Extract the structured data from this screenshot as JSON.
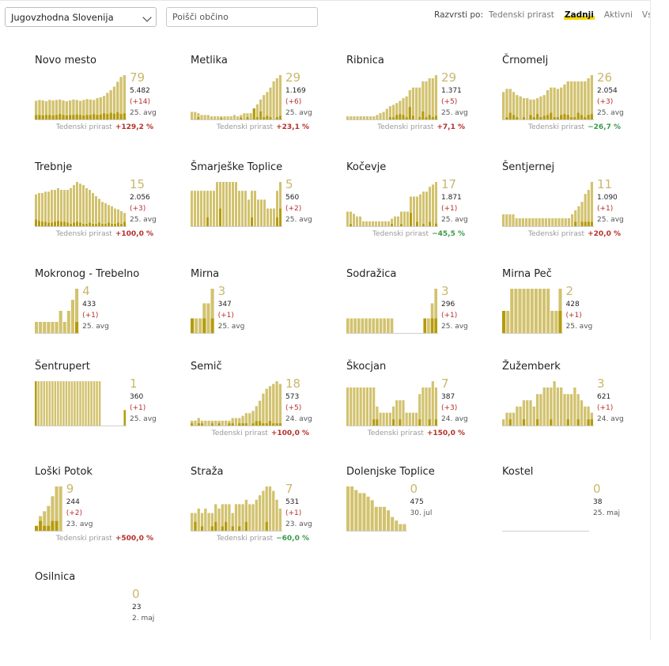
{
  "controls": {
    "region_value": "Jugovzhodna Slovenija",
    "search_placeholder": "Poišči občino",
    "sort_label": "Razvrsti po:",
    "sort_options": [
      "Tedenski prirast",
      "Zadnji",
      "Aktivni",
      "Vsi"
    ],
    "sort_active": "Zadnji"
  },
  "growth_label": "Tedenski prirast",
  "colors": {
    "active": "#d2c26e",
    "new": "#b59b0b",
    "muted_number": "#c9b86a",
    "up": "#b4302a",
    "down": "#3a9a4a"
  },
  "municipalities": [
    {
      "name": "Novo mesto",
      "active": "79",
      "total": "5.482",
      "delta": "(+14)",
      "date": "25. avg",
      "growth": "+129,2 %",
      "trend": "up",
      "bars": [
        0.42,
        0.44,
        0.43,
        0.41,
        0.44,
        0.43,
        0.44,
        0.45,
        0.43,
        0.41,
        0.43,
        0.45,
        0.44,
        0.42,
        0.44,
        0.46,
        0.45,
        0.44,
        0.48,
        0.5,
        0.53,
        0.6,
        0.66,
        0.74,
        0.85,
        0.96,
        1.0
      ],
      "news": [
        0.1,
        0.1,
        0.09,
        0.1,
        0.1,
        0.09,
        0.1,
        0.12,
        0.1,
        0.09,
        0.1,
        0.1,
        0.11,
        0.1,
        0.09,
        0.1,
        0.1,
        0.12,
        0.1,
        0.11,
        0.14,
        0.12,
        0.15,
        0.13,
        0.16,
        0.12,
        0.14
      ]
    },
    {
      "name": "Metlika",
      "active": "29",
      "total": "1.169",
      "delta": "(+6)",
      "date": "25. avg",
      "growth": "+23,1 %",
      "trend": "up",
      "bars": [
        0.17,
        0.17,
        0.14,
        0.1,
        0.1,
        0.1,
        0.07,
        0.07,
        0.07,
        0.07,
        0.07,
        0.07,
        0.07,
        0.1,
        0.07,
        0.1,
        0.14,
        0.14,
        0.14,
        0.24,
        0.34,
        0.45,
        0.55,
        0.62,
        0.72,
        0.86,
        0.93,
        1.0
      ],
      "news": [
        0,
        0,
        0.05,
        0,
        0,
        0,
        0,
        0,
        0,
        0.03,
        0,
        0,
        0,
        0,
        0,
        0.04,
        0,
        0.05,
        0,
        0.25,
        0.05,
        0.18,
        0.05,
        0.08,
        0.05,
        0,
        0.05,
        0.08
      ]
    },
    {
      "name": "Ribnica",
      "active": "29",
      "total": "1.371",
      "delta": "(+5)",
      "date": "25. avg",
      "growth": "+7,1 %",
      "trend": "up",
      "bars": [
        0.07,
        0.07,
        0.07,
        0.07,
        0.07,
        0.07,
        0.07,
        0.07,
        0.07,
        0.1,
        0.14,
        0.17,
        0.24,
        0.3,
        0.33,
        0.37,
        0.42,
        0.48,
        0.52,
        0.66,
        0.72,
        0.72,
        0.72,
        0.86,
        0.86,
        0.93,
        0.93,
        1.0
      ],
      "news": [
        0,
        0,
        0,
        0,
        0,
        0,
        0,
        0,
        0,
        0,
        0,
        0,
        0,
        0.05,
        0.05,
        0.1,
        0.12,
        0.1,
        0.05,
        0.28,
        0.08,
        0,
        0.05,
        0.18,
        0.05,
        0.1,
        0.05,
        0.08
      ]
    },
    {
      "name": "Črnomelj",
      "active": "26",
      "total": "2.054",
      "delta": "(+3)",
      "date": "25. avg",
      "growth": "−26,7 %",
      "trend": "down",
      "bars": [
        0.62,
        0.69,
        0.69,
        0.62,
        0.55,
        0.52,
        0.48,
        0.48,
        0.45,
        0.45,
        0.48,
        0.52,
        0.55,
        0.66,
        0.72,
        0.72,
        0.69,
        0.72,
        0.79,
        0.86,
        0.86,
        0.86,
        0.86,
        0.86,
        0.86,
        0.93,
        1.0
      ],
      "news": [
        0,
        0.05,
        0.15,
        0.1,
        0.05,
        0,
        0.05,
        0,
        0.1,
        0.05,
        0.12,
        0.05,
        0.08,
        0.1,
        0.15,
        0.05,
        0.05,
        0.1,
        0.12,
        0.1,
        0.05,
        0.05,
        0.15,
        0.1,
        0.05,
        0.1,
        0.12
      ]
    },
    {
      "name": "Trebnje",
      "active": "15",
      "total": "2.056",
      "delta": "(+3)",
      "date": "25. avg",
      "growth": "+100,0 %",
      "trend": "up",
      "bars": [
        0.72,
        0.75,
        0.75,
        0.78,
        0.78,
        0.82,
        0.82,
        0.86,
        0.82,
        0.82,
        0.82,
        0.86,
        0.93,
        1.0,
        0.96,
        0.93,
        0.86,
        0.82,
        0.75,
        0.68,
        0.62,
        0.55,
        0.52,
        0.48,
        0.45,
        0.4,
        0.38,
        0.34,
        0.3
      ],
      "news": [
        0.15,
        0.12,
        0.1,
        0.1,
        0.08,
        0.08,
        0.1,
        0.12,
        0.1,
        0.1,
        0.08,
        0.05,
        0.08,
        0.1,
        0.08,
        0.05,
        0.05,
        0.08,
        0.05,
        0.05,
        0.08,
        0.05,
        0.05,
        0.08,
        0.05,
        0.05,
        0.08,
        0.05,
        0.1
      ]
    },
    {
      "name": "Šmarješke Toplice",
      "active": "5",
      "total": "560",
      "delta": "(+2)",
      "date": "25. avg",
      "growth": "",
      "trend": "",
      "bars": [
        0.8,
        0.8,
        0.8,
        0.8,
        0.8,
        0.8,
        0.8,
        0.8,
        1.0,
        1.0,
        1.0,
        1.0,
        1.0,
        1.0,
        1.0,
        0.8,
        0.8,
        0.8,
        0.6,
        0.8,
        0.8,
        0.6,
        0.6,
        0.6,
        0.4,
        0.4,
        0.4,
        0.8,
        1.0
      ],
      "news": [
        0,
        0,
        0,
        0,
        0,
        0.2,
        0,
        0,
        0,
        0.4,
        0,
        0,
        0,
        0,
        0,
        0,
        0,
        0,
        0,
        0.2,
        0,
        0,
        0,
        0,
        0,
        0,
        0,
        0.2,
        0.4
      ]
    },
    {
      "name": "Kočevje",
      "active": "17",
      "total": "1.871",
      "delta": "(+1)",
      "date": "25. avg",
      "growth": "−45,5 %",
      "trend": "down",
      "bars": [
        0.33,
        0.33,
        0.28,
        0.22,
        0.22,
        0.11,
        0.11,
        0.11,
        0.11,
        0.11,
        0.11,
        0.11,
        0.11,
        0.11,
        0.17,
        0.22,
        0.22,
        0.33,
        0.33,
        0.33,
        0.67,
        0.67,
        0.67,
        0.72,
        0.78,
        0.78,
        0.89,
        0.94,
        1.0
      ],
      "news": [
        0,
        0.05,
        0,
        0,
        0,
        0,
        0,
        0,
        0,
        0,
        0,
        0,
        0,
        0,
        0.05,
        0,
        0,
        0.05,
        0,
        0,
        0.3,
        0,
        0.1,
        0,
        0.05,
        0,
        0.1,
        0,
        0.06
      ]
    },
    {
      "name": "Šentjernej",
      "active": "11",
      "total": "1.090",
      "delta": "(+1)",
      "date": "25. avg",
      "growth": "+20,0 %",
      "trend": "up",
      "bars": [
        0.27,
        0.27,
        0.27,
        0.27,
        0.18,
        0.18,
        0.18,
        0.18,
        0.18,
        0.18,
        0.18,
        0.18,
        0.18,
        0.18,
        0.18,
        0.18,
        0.18,
        0.18,
        0.18,
        0.18,
        0.18,
        0.27,
        0.36,
        0.45,
        0.55,
        0.73,
        0.82,
        1.0
      ],
      "news": [
        0,
        0,
        0,
        0,
        0,
        0,
        0,
        0,
        0,
        0,
        0,
        0,
        0,
        0,
        0,
        0,
        0,
        0,
        0,
        0,
        0,
        0,
        0.1,
        0,
        0.1,
        0.1,
        0.1,
        0.1
      ]
    },
    {
      "name": "Mokronog - Trebelno",
      "active": "4",
      "total": "433",
      "delta": "(+1)",
      "date": "25. avg",
      "growth": "",
      "trend": "",
      "bars": [
        0.25,
        0.25,
        0.25,
        0.25,
        0.25,
        0.25,
        0.5,
        0.25,
        0.5,
        0.75,
        1.0
      ],
      "news": [
        0,
        0,
        0,
        0,
        0,
        0,
        0,
        0,
        0,
        0,
        0.25
      ]
    },
    {
      "name": "Mirna",
      "active": "3",
      "total": "347",
      "delta": "(+1)",
      "date": "25. avg",
      "growth": "",
      "trend": "",
      "bars": [
        0.33,
        0.33,
        0.33,
        0.67,
        0.67,
        1.0
      ],
      "news": [
        0.33,
        0,
        0,
        0.33,
        0,
        0.33
      ]
    },
    {
      "name": "Sodražica",
      "active": "3",
      "total": "296",
      "delta": "(+1)",
      "date": "25. avg",
      "growth": "",
      "trend": "",
      "bars": [
        0.33,
        0.33,
        0.33,
        0.33,
        0.33,
        0.33,
        0.33,
        0.33,
        0.33,
        0.33,
        0.33,
        0.33,
        0.33,
        0,
        0,
        0,
        0,
        0,
        0,
        0,
        0,
        0.33,
        0.33,
        0.67,
        1.0
      ],
      "news": [
        0,
        0,
        0,
        0,
        0,
        0,
        0,
        0,
        0,
        0,
        0,
        0,
        0,
        0,
        0,
        0,
        0,
        0,
        0,
        0,
        0,
        0.33,
        0,
        0.33,
        0.33
      ]
    },
    {
      "name": "Mirna Peč",
      "active": "2",
      "total": "428",
      "delta": "(+1)",
      "date": "25. avg",
      "growth": "",
      "trend": "",
      "bars": [
        0.5,
        0.5,
        1.0,
        1.0,
        1.0,
        1.0,
        1.0,
        1.0,
        1.0,
        1.0,
        1.0,
        1.0,
        0.5,
        0.5,
        1.0
      ],
      "news": [
        0.5,
        0,
        0,
        0,
        0,
        0,
        0,
        0,
        0,
        0,
        0,
        0,
        0,
        0,
        0.5
      ]
    },
    {
      "name": "Šentrupert",
      "active": "1",
      "total": "360",
      "delta": "(+1)",
      "date": "25. avg",
      "growth": "",
      "trend": "",
      "bars": [
        1.0,
        1.0,
        1.0,
        1.0,
        1.0,
        1.0,
        1.0,
        1.0,
        1.0,
        1.0,
        1.0,
        1.0,
        1.0,
        1.0,
        1.0,
        1.0,
        1.0,
        1.0,
        1.0,
        1.0,
        1.0,
        1.0,
        1.0,
        1.0,
        0,
        0,
        0,
        0,
        0,
        0,
        0,
        0,
        0.35
      ],
      "news": [
        1.0,
        0,
        0,
        0,
        0,
        0,
        0,
        0,
        0,
        0,
        0,
        0,
        0,
        0,
        0,
        0,
        0,
        0,
        0,
        0,
        0,
        0,
        0,
        0,
        0,
        0,
        0,
        0,
        0,
        0,
        0,
        0,
        0.35
      ]
    },
    {
      "name": "Semič",
      "active": "18",
      "total": "573",
      "delta": "(+5)",
      "date": "24. avg",
      "growth": "+100,0 %",
      "trend": "up",
      "bars": [
        0.11,
        0.11,
        0.17,
        0.11,
        0.11,
        0.11,
        0.11,
        0.11,
        0.11,
        0.11,
        0.11,
        0.11,
        0.17,
        0.17,
        0.17,
        0.22,
        0.28,
        0.28,
        0.33,
        0.44,
        0.56,
        0.72,
        0.83,
        0.89,
        0.94,
        1.0,
        0.94
      ],
      "news": [
        0.05,
        0,
        0.05,
        0.05,
        0,
        0,
        0.05,
        0,
        0.05,
        0,
        0,
        0.05,
        0.05,
        0,
        0.05,
        0.05,
        0.05,
        0,
        0.05,
        0.1,
        0.1,
        0.05,
        0.05,
        0.1,
        0.05,
        0.05,
        0.05
      ]
    },
    {
      "name": "Škocjan",
      "active": "7",
      "total": "387",
      "delta": "(+3)",
      "date": "24. avg",
      "growth": "+150,0 %",
      "trend": "up",
      "bars": [
        0.86,
        0.86,
        0.86,
        0.86,
        0.86,
        0.86,
        0.86,
        0.86,
        0.86,
        0.43,
        0.29,
        0.29,
        0.29,
        0.29,
        0.43,
        0.57,
        0.57,
        0.57,
        0.29,
        0.29,
        0.29,
        0.29,
        0.71,
        0.86,
        0.86,
        0.86,
        1.0,
        0.86
      ],
      "news": [
        0,
        0,
        0,
        0,
        0,
        0,
        0,
        0,
        0.14,
        0.14,
        0,
        0,
        0,
        0,
        0.14,
        0,
        0.14,
        0,
        0,
        0,
        0,
        0,
        0.14,
        0,
        0,
        0.14,
        0,
        0.14
      ]
    },
    {
      "name": "Žužemberk",
      "active": "3",
      "total": "621",
      "delta": "(+1)",
      "date": "24. avg",
      "growth": "",
      "trend": "",
      "bars": [
        0.14,
        0.29,
        0.29,
        0.29,
        0.43,
        0.43,
        0.57,
        0.57,
        0.57,
        0.43,
        0.71,
        0.71,
        0.86,
        0.86,
        0.86,
        1.0,
        0.86,
        0.86,
        0.71,
        0.71,
        0.71,
        0.86,
        0.71,
        0.57,
        0.43,
        0.43,
        0.29
      ],
      "news": [
        0,
        0,
        0.14,
        0,
        0,
        0,
        0.14,
        0,
        0,
        0,
        0.14,
        0,
        0,
        0,
        0.14,
        0,
        0,
        0,
        0,
        0.14,
        0,
        0,
        0.14,
        0,
        0,
        0.14,
        0.14
      ]
    },
    {
      "name": "Loški Potok",
      "active": "9",
      "total": "244",
      "delta": "(+2)",
      "date": "23. avg",
      "growth": "+500,0 %",
      "trend": "up",
      "bars": [
        0.11,
        0.33,
        0.44,
        0.56,
        0.78,
        1.0,
        1.0
      ],
      "news": [
        0.11,
        0.22,
        0.11,
        0.11,
        0.22,
        0.22,
        0
      ]
    },
    {
      "name": "Straža",
      "active": "7",
      "total": "531",
      "delta": "(+1)",
      "date": "23. avg",
      "growth": "−60,0 %",
      "trend": "down",
      "bars": [
        0.4,
        0.4,
        0.5,
        0.4,
        0.5,
        0.4,
        0.4,
        0.6,
        0.5,
        0.6,
        0.6,
        0.6,
        0.4,
        0.6,
        0.6,
        0.6,
        0.7,
        0.6,
        0.6,
        0.7,
        0.8,
        0.9,
        1.0,
        1.0,
        0.9,
        0.7,
        0.5
      ],
      "news": [
        0,
        0.2,
        0,
        0.1,
        0,
        0,
        0.1,
        0.2,
        0,
        0.1,
        0.2,
        0,
        0.1,
        0,
        0.1,
        0,
        0.2,
        0,
        0,
        0,
        0,
        0,
        0.2,
        0,
        0,
        0,
        0
      ]
    },
    {
      "name": "Dolenjske Toplice",
      "active": "0",
      "total": "475",
      "delta": "",
      "date": "30. jul",
      "growth": "",
      "trend": "",
      "bars": [
        1.0,
        1.0,
        0.92,
        0.85,
        0.85,
        0.77,
        0.69,
        0.54,
        0.54,
        0.54,
        0.46,
        0.31,
        0.23,
        0.15,
        0.15
      ],
      "news": [
        0,
        0,
        0,
        0,
        0,
        0,
        0,
        0,
        0,
        0,
        0,
        0,
        0,
        0,
        0
      ]
    },
    {
      "name": "Kostel",
      "active": "0",
      "total": "38",
      "delta": "",
      "date": "25. maj",
      "growth": "",
      "trend": "",
      "bars": [],
      "news": []
    },
    {
      "name": "Osilnica",
      "active": "0",
      "total": "23",
      "delta": "",
      "date": "2. maj",
      "growth": "",
      "trend": "",
      "bars": [],
      "news": []
    }
  ]
}
